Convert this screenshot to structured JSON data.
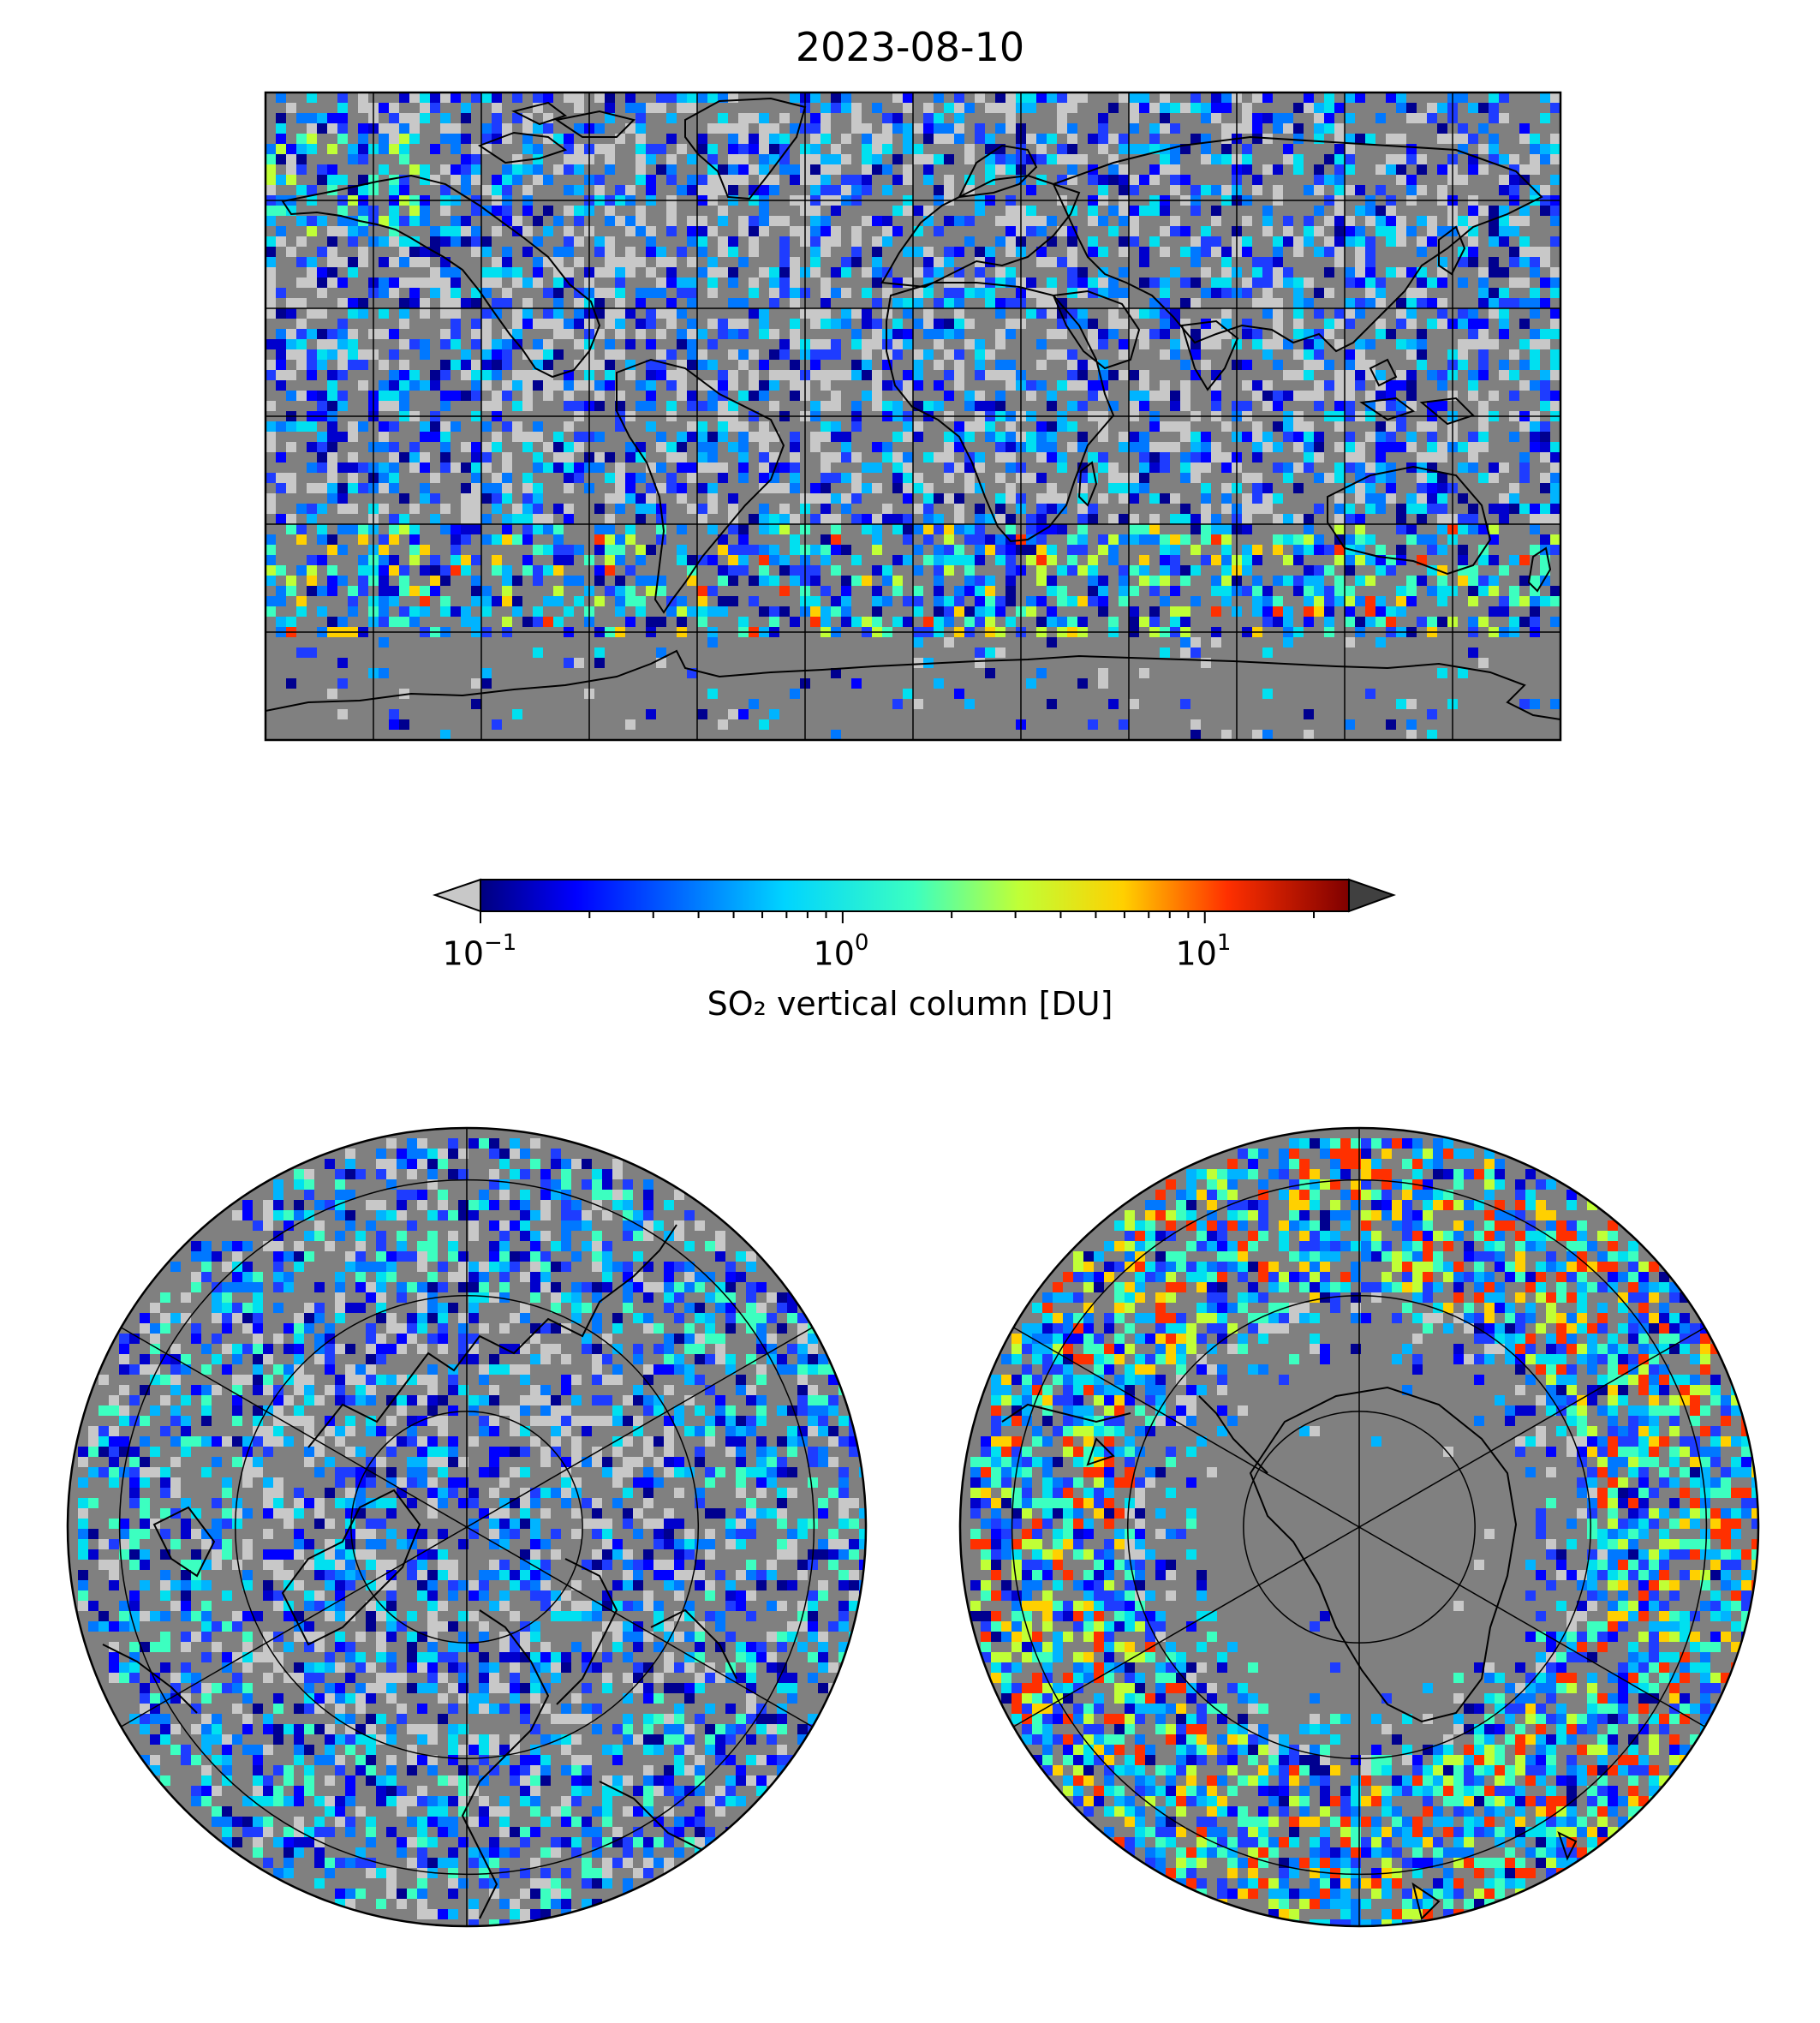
{
  "figure": {
    "title": "2023-08-10"
  },
  "colorbar": {
    "label": "SO₂ vertical column [DU]",
    "scale": "log",
    "vmin": 0.1,
    "vmax": 25,
    "extend": "both",
    "colormap": "jet",
    "under_color": "#c8c8c8",
    "over_color": "#404040",
    "ticks": [
      {
        "base": "10",
        "exp": "−1",
        "value": 0.1
      },
      {
        "base": "10",
        "exp": "0",
        "value": 1
      },
      {
        "base": "10",
        "exp": "1",
        "value": 10
      }
    ]
  },
  "panels": [
    {
      "id": "global",
      "projection": "plate-carree",
      "gridlines_lon_step_deg": 30,
      "gridlines_lat_step_deg": 30
    },
    {
      "id": "north-polar",
      "projection": "north-polar-stereographic",
      "gridlines": true
    },
    {
      "id": "south-polar",
      "projection": "south-polar-stereographic",
      "gridlines": true
    }
  ],
  "colors": {
    "land_fill": "#808080",
    "background": "#ffffff",
    "coastline": "#000000"
  }
}
